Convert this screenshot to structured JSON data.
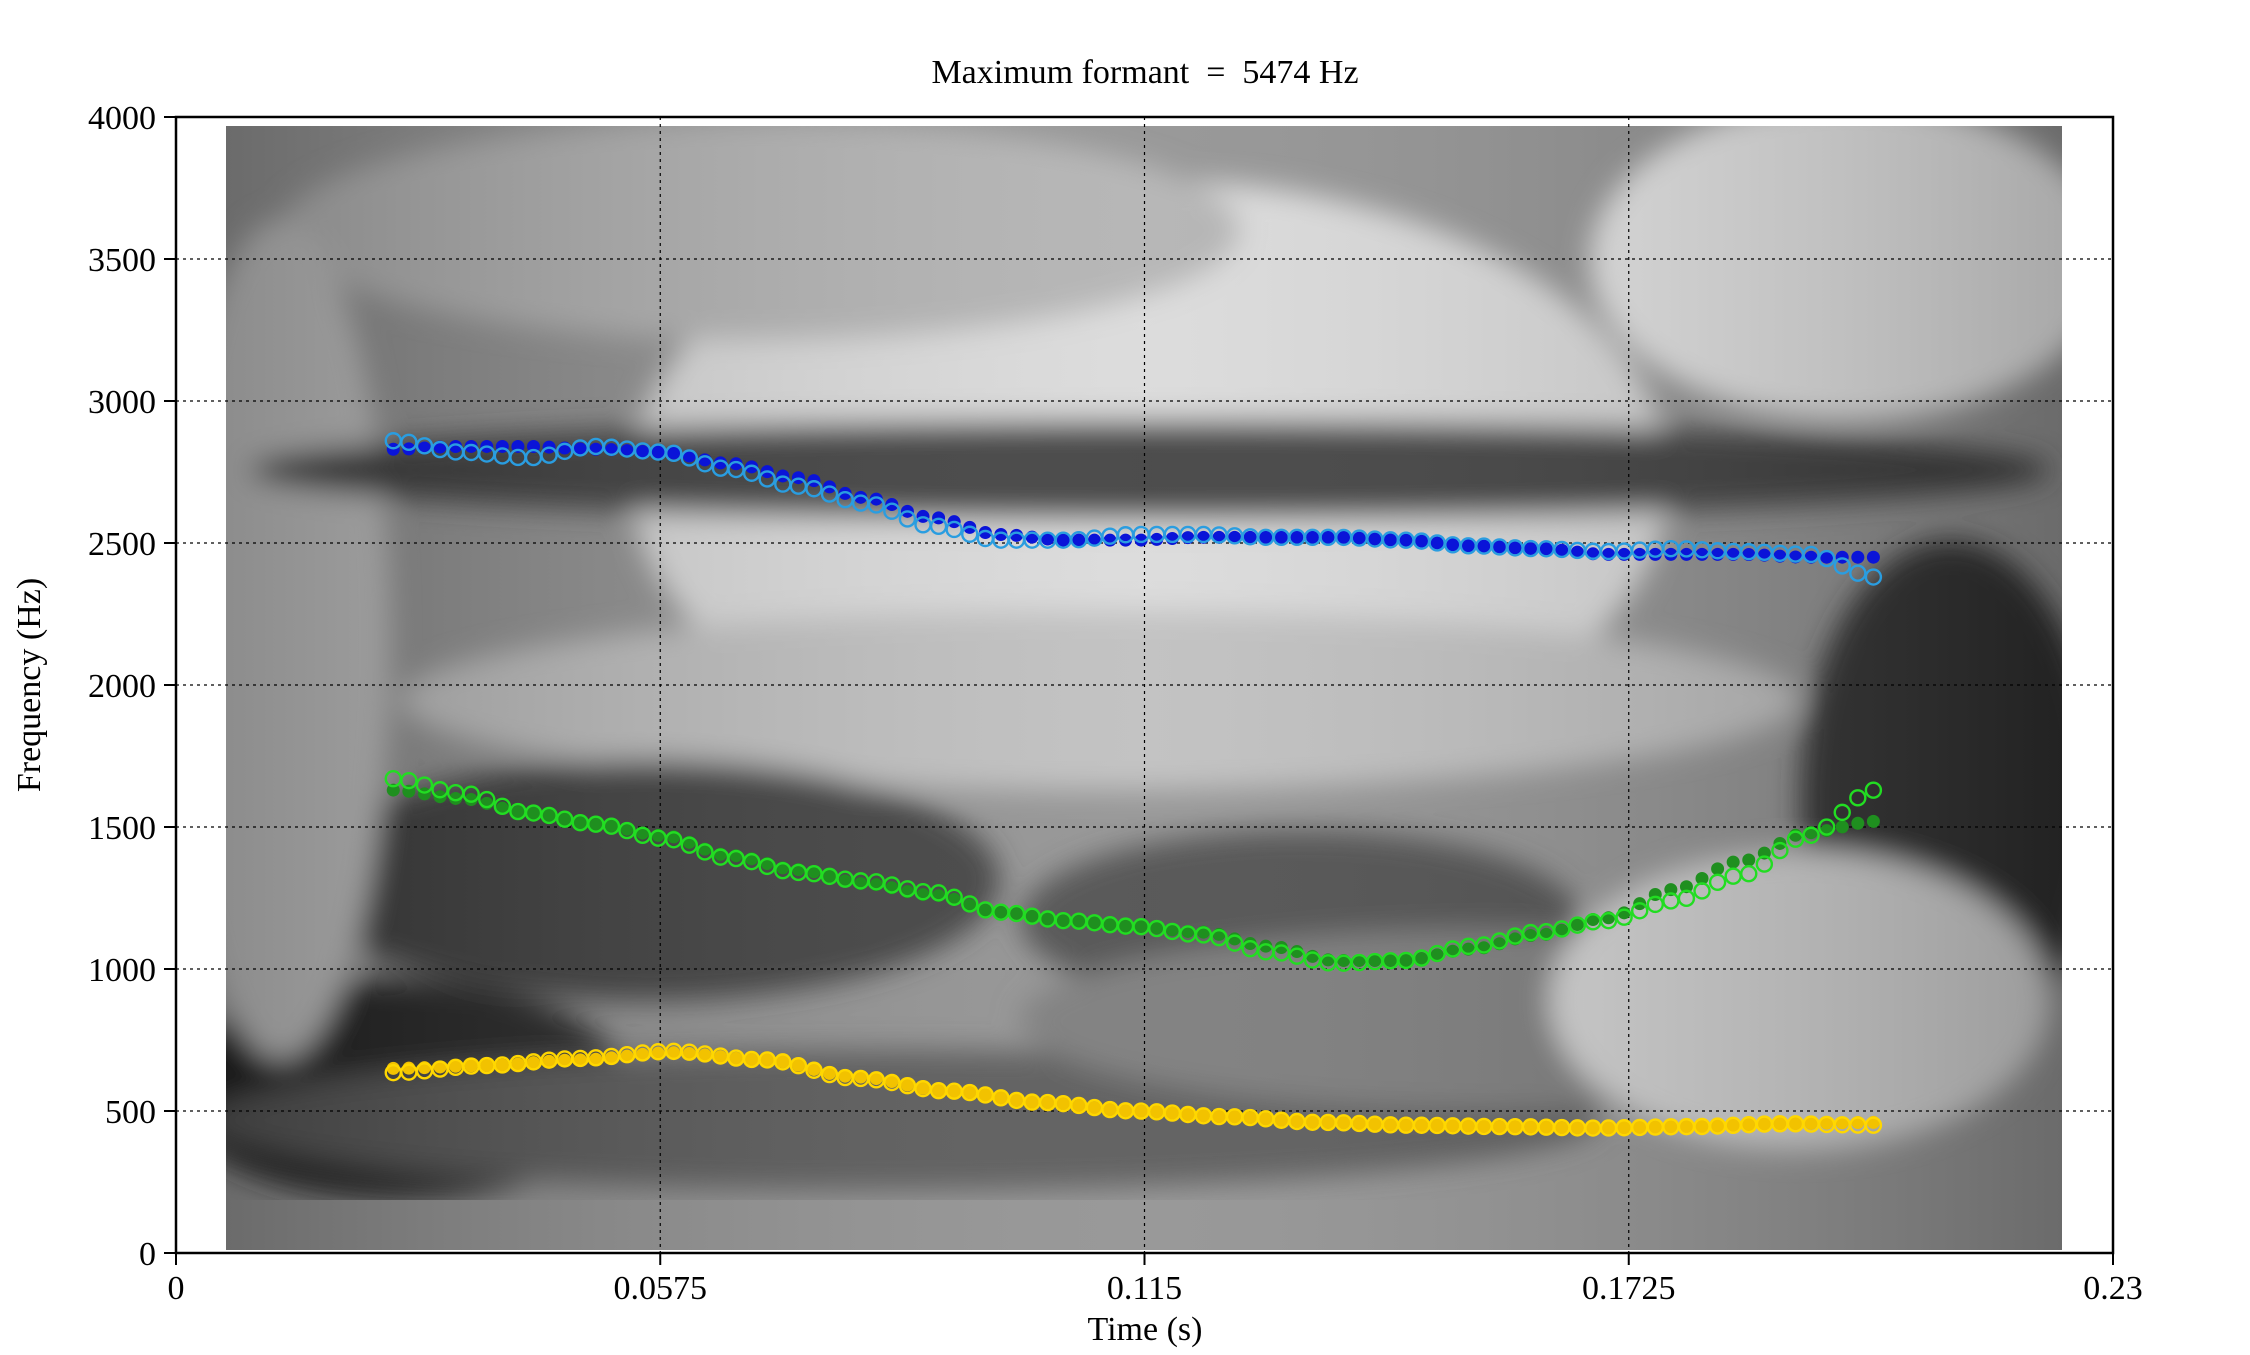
{
  "chart_data": {
    "type": "scatter",
    "title": "Maximum formant  =  5474 Hz",
    "xlabel": "Time (s)",
    "ylabel": "Frequency (Hz)",
    "xlim": [
      0,
      0.23
    ],
    "ylim": [
      0,
      4000
    ],
    "x_ticks": [
      "0",
      "0.0575",
      "0.115",
      "0.1725",
      "0.23"
    ],
    "y_ticks": [
      "0",
      "500",
      "1000",
      "1500",
      "2000",
      "2500",
      "3000",
      "3500",
      "4000"
    ],
    "grid": true,
    "background": "grayscale spectrogram",
    "colors": {
      "f1_dots": "#f2c200",
      "f1_circles": "#ffd700",
      "f2_dots": "#1f8f1f",
      "f2_circles": "#22dd22",
      "f3_dots": "#0a14d8",
      "f3_circles": "#2a9de0"
    },
    "series": [
      {
        "marker": "filled-dot",
        "color": "#f2c200",
        "x": [
          0.0258,
          0.0368,
          0.0478,
          0.0588,
          0.0698,
          0.0808,
          0.0918,
          0.1028,
          0.1138,
          0.1248,
          0.1358,
          0.1468,
          0.1578,
          0.1688,
          0.1798,
          0.1908,
          0.2018
        ],
        "y": [
          650,
          660,
          680,
          705,
          680,
          620,
          570,
          530,
          500,
          480,
          460,
          450,
          445,
          440,
          445,
          455,
          460
        ]
      },
      {
        "marker": "open-circle",
        "color": "#ffd700",
        "x": [
          0.0258,
          0.0368,
          0.0478,
          0.0588,
          0.0698,
          0.0808,
          0.0918,
          0.1028,
          0.1138,
          0.1248,
          0.1358,
          0.1468,
          0.1578,
          0.1688,
          0.1798,
          0.1908,
          0.2018
        ],
        "y": [
          635,
          660,
          685,
          710,
          680,
          615,
          570,
          530,
          500,
          480,
          460,
          450,
          445,
          440,
          445,
          455,
          450
        ]
      },
      {
        "marker": "filled-dot",
        "color": "#1f8f1f",
        "x": [
          0.0258,
          0.0338,
          0.0418,
          0.0498,
          0.0578,
          0.0658,
          0.0738,
          0.0818,
          0.0898,
          0.0978,
          0.1058,
          0.1138,
          0.1218,
          0.1298,
          0.1378,
          0.1458,
          0.1538,
          0.1618,
          0.1698,
          0.1778,
          0.1858,
          0.1938,
          0.2018
        ],
        "y": [
          1630,
          1600,
          1550,
          1510,
          1470,
          1400,
          1350,
          1300,
          1260,
          1200,
          1170,
          1150,
          1130,
          1080,
          1030,
          1030,
          1070,
          1120,
          1180,
          1280,
          1380,
          1480,
          1520
        ]
      },
      {
        "marker": "open-circle",
        "color": "#22dd22",
        "x": [
          0.0258,
          0.0338,
          0.0418,
          0.0498,
          0.0578,
          0.0658,
          0.0738,
          0.0818,
          0.0898,
          0.0978,
          0.1058,
          0.1138,
          0.1218,
          0.1298,
          0.1378,
          0.1458,
          0.1538,
          0.1618,
          0.1698,
          0.1778,
          0.1858,
          0.1938,
          0.2018
        ],
        "y": [
          1670,
          1620,
          1550,
          1510,
          1460,
          1390,
          1340,
          1310,
          1270,
          1200,
          1170,
          1150,
          1120,
          1060,
          1020,
          1030,
          1080,
          1130,
          1170,
          1240,
          1330,
          1470,
          1630
        ]
      },
      {
        "marker": "filled-dot",
        "color": "#0a14d8",
        "x": [
          0.0258,
          0.0338,
          0.0418,
          0.0498,
          0.0578,
          0.0658,
          0.0738,
          0.0818,
          0.0898,
          0.0978,
          0.1058,
          0.1138,
          0.1218,
          0.1298,
          0.1378,
          0.1458,
          0.1538,
          0.1618,
          0.1698,
          0.1778,
          0.1858,
          0.1938,
          0.2018
        ],
        "y": [
          2830,
          2840,
          2840,
          2830,
          2820,
          2780,
          2730,
          2660,
          2590,
          2530,
          2510,
          2510,
          2520,
          2520,
          2520,
          2510,
          2490,
          2480,
          2460,
          2460,
          2460,
          2450,
          2450
        ]
      },
      {
        "marker": "open-circle",
        "color": "#2a9de0",
        "x": [
          0.0258,
          0.0338,
          0.0418,
          0.0498,
          0.0578,
          0.0658,
          0.0738,
          0.0818,
          0.0898,
          0.0978,
          0.1058,
          0.1138,
          0.1218,
          0.1298,
          0.1378,
          0.1458,
          0.1538,
          0.1618,
          0.1698,
          0.1778,
          0.1858,
          0.1938,
          0.2018
        ],
        "y": [
          2860,
          2820,
          2800,
          2840,
          2820,
          2760,
          2700,
          2640,
          2560,
          2510,
          2510,
          2530,
          2530,
          2520,
          2520,
          2510,
          2490,
          2480,
          2470,
          2480,
          2470,
          2460,
          2380
        ]
      }
    ]
  }
}
